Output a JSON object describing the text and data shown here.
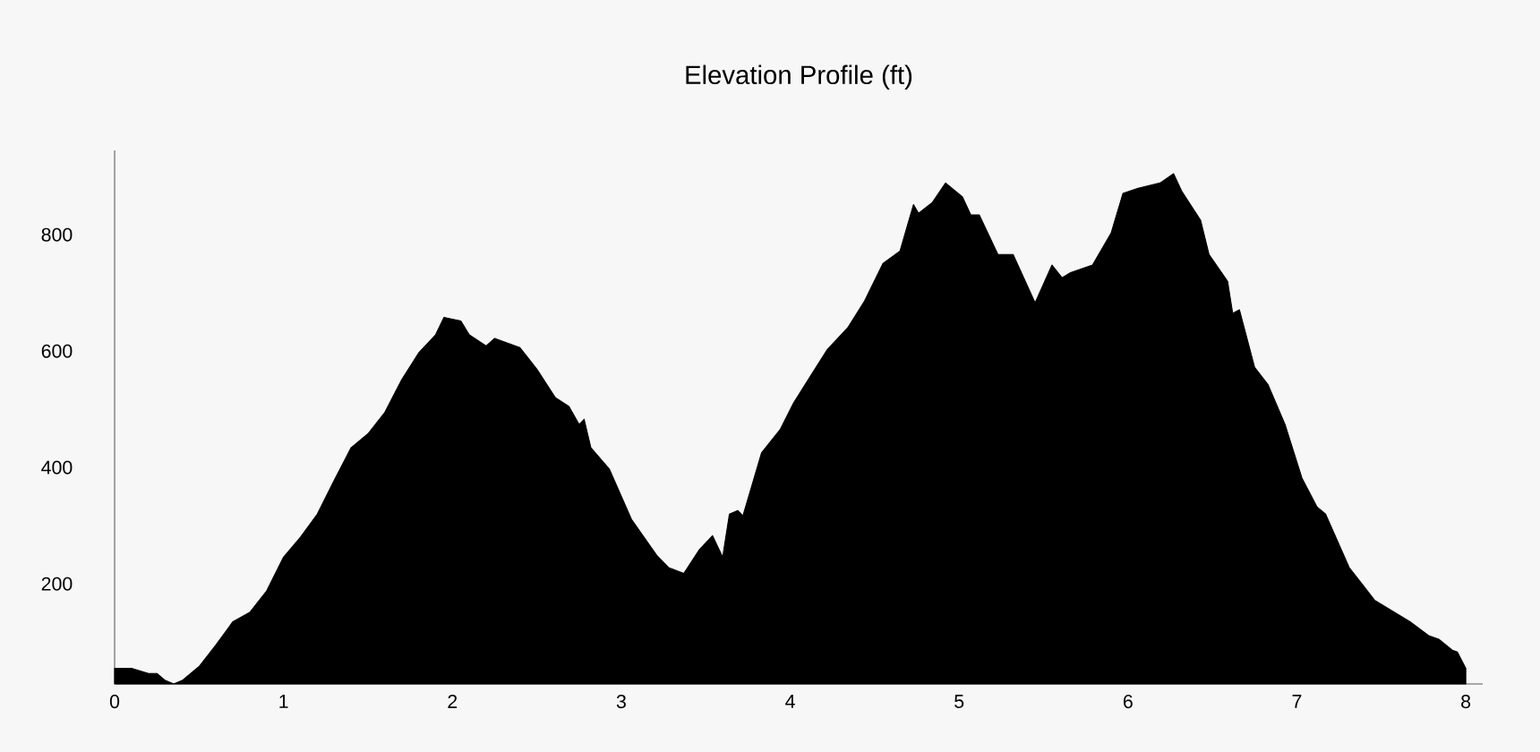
{
  "chart_data": {
    "type": "area",
    "title": "Elevation Profile (ft)",
    "x": [
      0,
      0.1,
      0.2,
      0.25,
      0.3,
      0.35,
      0.4,
      0.5,
      0.6,
      0.7,
      0.8,
      0.9,
      1.0,
      1.1,
      1.2,
      1.3,
      1.4,
      1.5,
      1.6,
      1.7,
      1.8,
      1.9,
      1.95,
      2.05,
      2.1,
      2.2,
      2.25,
      2.4,
      2.5,
      2.61,
      2.69,
      2.75,
      2.78,
      2.82,
      2.93,
      3.06,
      3.21,
      3.28,
      3.37,
      3.46,
      3.54,
      3.6,
      3.64,
      3.69,
      3.72,
      3.83,
      3.94,
      4.02,
      4.12,
      4.22,
      4.34,
      4.44,
      4.55,
      4.65,
      4.73,
      4.76,
      4.84,
      4.92,
      5.02,
      5.07,
      5.12,
      5.23,
      5.32,
      5.45,
      5.55,
      5.61,
      5.66,
      5.79,
      5.9,
      5.97,
      6.06,
      6.19,
      6.27,
      6.32,
      6.43,
      6.48,
      6.59,
      6.62,
      6.66,
      6.75,
      6.83,
      6.93,
      7.03,
      7.12,
      7.17,
      7.31,
      7.46,
      7.67,
      7.78,
      7.84,
      7.92,
      7.95,
      8.0
    ],
    "values": [
      55,
      55,
      46,
      46,
      34,
      28,
      34,
      58,
      95,
      135,
      151,
      188,
      246,
      280,
      320,
      378,
      434,
      458,
      495,
      551,
      597,
      628,
      658,
      652,
      628,
      609,
      622,
      606,
      569,
      520,
      505,
      474,
      483,
      434,
      397,
      311,
      249,
      228,
      218,
      258,
      283,
      246,
      320,
      326,
      317,
      425,
      465,
      511,
      557,
      603,
      640,
      686,
      751,
      772,
      852,
      837,
      855,
      889,
      865,
      834,
      834,
      766,
      766,
      683,
      748,
      726,
      735,
      748,
      803,
      871,
      880,
      889,
      905,
      874,
      825,
      766,
      720,
      665,
      671,
      572,
      542,
      474,
      382,
      332,
      320,
      228,
      172,
      135,
      111,
      105,
      86,
      83,
      55
    ],
    "color": "#000000",
    "xlim": [
      0,
      8.1
    ],
    "ylim": [
      28,
      945
    ],
    "xticks": [
      0,
      1,
      2,
      3,
      4,
      5,
      6,
      7,
      8
    ],
    "yticks": [
      200,
      400,
      600,
      800
    ]
  }
}
